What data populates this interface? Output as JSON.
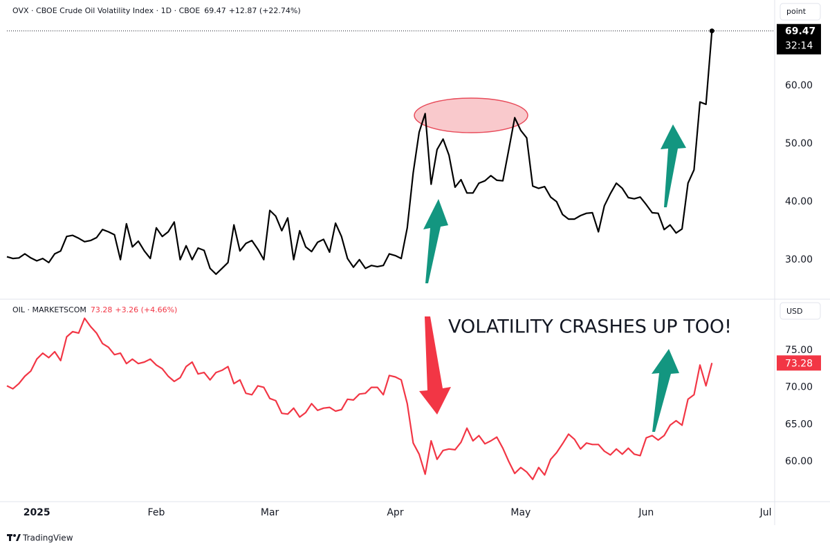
{
  "chart_data": [
    {
      "type": "line",
      "title": "OVX · CBOE Crude Oil Volatility Index · 1D · CBOE",
      "subtitle": "+12.87 (+22.74%)",
      "unit_label": "point",
      "countdown": "32:14",
      "series": [
        {
          "name": "OVX",
          "color": "#000000",
          "values": [
            30.5,
            30.2,
            30.3,
            31.0,
            30.3,
            29.8,
            30.2,
            29.5,
            31.0,
            31.5,
            34.0,
            34.2,
            33.7,
            33.1,
            33.3,
            33.8,
            35.2,
            34.8,
            34.3,
            30.0,
            36.2,
            32.2,
            33.2,
            31.5,
            30.2,
            35.5,
            34.0,
            34.8,
            36.5,
            30.0,
            32.4,
            30.0,
            32.0,
            31.6,
            28.5,
            27.5,
            28.5,
            29.5,
            36.0,
            31.5,
            32.8,
            33.3,
            31.8,
            30.0,
            38.5,
            37.5,
            35.0,
            37.2,
            30.0,
            35.0,
            32.2,
            31.4,
            33.0,
            33.5,
            31.3,
            36.3,
            34.0,
            30.2,
            28.7,
            30.0,
            28.5,
            29.0,
            28.8,
            29.0,
            31.0,
            30.7,
            30.2,
            35.5,
            45.0,
            52.0,
            55.2,
            43.0,
            49.0,
            50.8,
            48.0,
            42.5,
            43.8,
            41.5,
            41.5,
            43.2,
            43.6,
            44.5,
            43.7,
            43.6,
            49.0,
            54.5,
            52.3,
            51.0,
            42.7,
            42.3,
            42.6,
            40.8,
            40.0,
            37.8,
            37.0,
            37.0,
            37.6,
            38.0,
            38.1,
            34.8,
            39.3,
            41.4,
            43.2,
            42.3,
            40.7,
            40.5,
            40.8,
            39.5,
            38.1,
            38.0,
            35.2,
            36.0,
            34.6,
            35.3,
            43.2,
            45.5,
            57.2,
            56.8,
            69.47
          ]
        }
      ],
      "xlim": [
        0,
        128.5
      ],
      "ylim": [
        23.3,
        74.8
      ],
      "yticks": [
        {
          "value": 30,
          "label": "30.00"
        },
        {
          "value": 40,
          "label": "40.00"
        },
        {
          "value": 50,
          "label": "50.00"
        },
        {
          "value": 60,
          "label": "60.00"
        }
      ]
    },
    {
      "type": "line",
      "title": "OIL · MARKETSCOM",
      "subtitle": "+3.26 (+4.66%)",
      "unit_label": "USD",
      "annotation": "VOLATILITY CRASHES UP TOO!",
      "series": [
        {
          "name": "OIL",
          "color": "#f23645",
          "values": [
            70.2,
            69.8,
            70.5,
            71.5,
            72.2,
            73.8,
            74.6,
            74.0,
            74.8,
            73.6,
            76.8,
            77.5,
            77.3,
            79.3,
            78.2,
            77.3,
            75.9,
            75.4,
            74.4,
            74.6,
            73.2,
            73.8,
            73.2,
            73.4,
            73.8,
            73.0,
            72.5,
            71.5,
            70.8,
            71.3,
            72.8,
            73.4,
            71.8,
            72.0,
            71.0,
            72.0,
            72.3,
            72.8,
            70.5,
            71.0,
            69.2,
            69.0,
            70.2,
            70.0,
            68.5,
            68.2,
            66.5,
            66.4,
            67.2,
            66.0,
            66.6,
            67.8,
            66.9,
            67.2,
            67.3,
            66.8,
            67.0,
            68.4,
            68.3,
            69.1,
            69.2,
            70.0,
            70.0,
            69.0,
            71.6,
            71.4,
            71.0,
            67.8,
            62.5,
            61.0,
            58.3,
            62.8,
            60.3,
            61.5,
            61.7,
            61.6,
            62.6,
            64.5,
            62.8,
            63.5,
            62.4,
            62.8,
            63.3,
            61.8,
            60.0,
            58.4,
            59.2,
            58.6,
            57.6,
            59.2,
            58.2,
            60.3,
            61.2,
            62.4,
            63.7,
            63.0,
            61.7,
            62.5,
            62.3,
            62.3,
            61.4,
            60.9,
            61.7,
            61.0,
            61.8,
            61.0,
            60.8,
            63.2,
            63.5,
            62.9,
            63.5,
            64.9,
            65.5,
            64.9,
            68.4,
            69.0,
            73.0,
            70.2,
            73.28
          ]
        }
      ],
      "xlim": [
        0,
        128.5
      ],
      "xticks": [
        {
          "value": 5,
          "label": "2025"
        },
        {
          "value": 25,
          "label": "Feb"
        },
        {
          "value": 44,
          "label": "Mar"
        },
        {
          "value": 65,
          "label": "Apr"
        },
        {
          "value": 86,
          "label": "May"
        },
        {
          "value": 107,
          "label": "Jun"
        },
        {
          "value": 127,
          "label": "Jul"
        }
      ],
      "ylim": [
        54.7,
        81.5
      ],
      "yticks": [
        {
          "value": 60,
          "label": "60.00"
        },
        {
          "value": 65,
          "label": "65.00"
        },
        {
          "value": 70,
          "label": "70.00"
        },
        {
          "value": 75,
          "label": "75.00"
        }
      ]
    }
  ],
  "footer": "TradingView"
}
